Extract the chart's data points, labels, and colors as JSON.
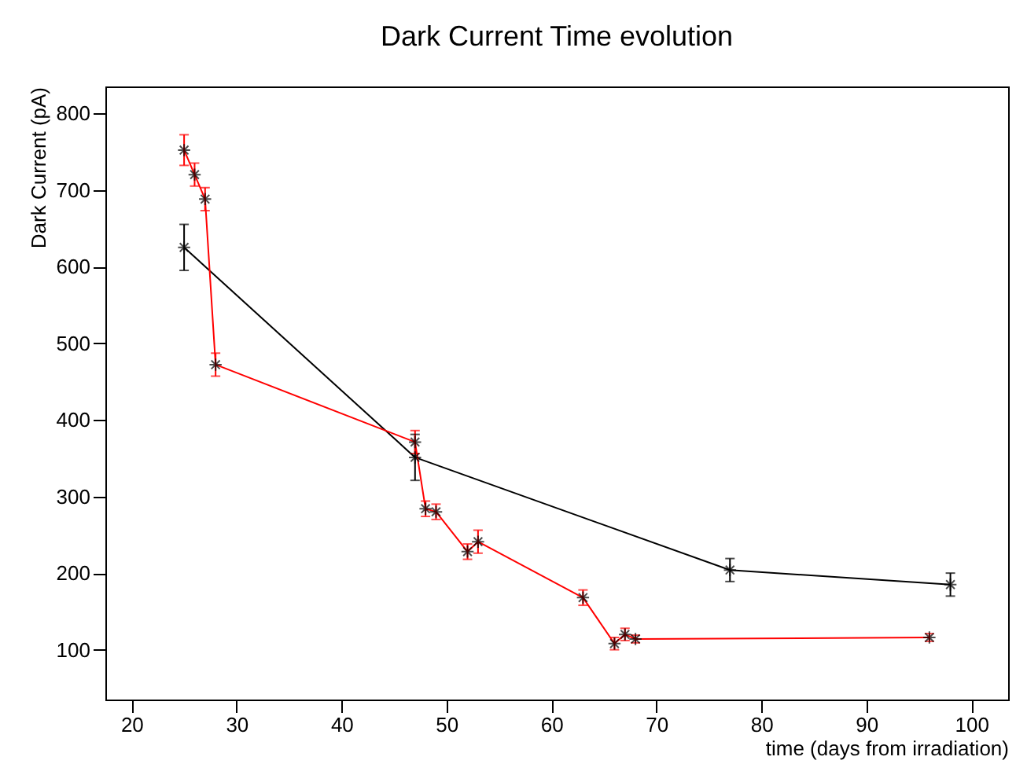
{
  "chart_data": {
    "type": "line",
    "title": "Dark Current Time evolution",
    "xlabel": "time (days from irradiation)",
    "ylabel": "Dark Current (pA)",
    "xlim": [
      17.5,
      103.5
    ],
    "ylim": [
      35,
      835
    ],
    "xticks": [
      20,
      30,
      40,
      50,
      60,
      70,
      80,
      90,
      100
    ],
    "yticks": [
      100,
      200,
      300,
      400,
      500,
      600,
      700,
      800
    ],
    "grid": false,
    "marker": "cross",
    "line_style": "solid",
    "series": [
      {
        "color": "#000000",
        "x": [
          25,
          47,
          77,
          98
        ],
        "values": [
          625,
          351,
          204,
          185
        ],
        "errors": [
          30,
          30,
          15,
          15
        ]
      },
      {
        "color": "#ff0000",
        "x": [
          25,
          26,
          27,
          28,
          47,
          48,
          49,
          52,
          53,
          63,
          66,
          67,
          68,
          96
        ],
        "values": [
          752,
          720,
          688,
          472,
          371,
          284,
          280,
          228,
          241,
          168,
          108,
          120,
          114,
          116
        ],
        "errors": [
          20,
          15,
          15,
          15,
          15,
          10,
          10,
          10,
          15,
          10,
          8,
          8,
          5,
          5
        ]
      }
    ]
  }
}
